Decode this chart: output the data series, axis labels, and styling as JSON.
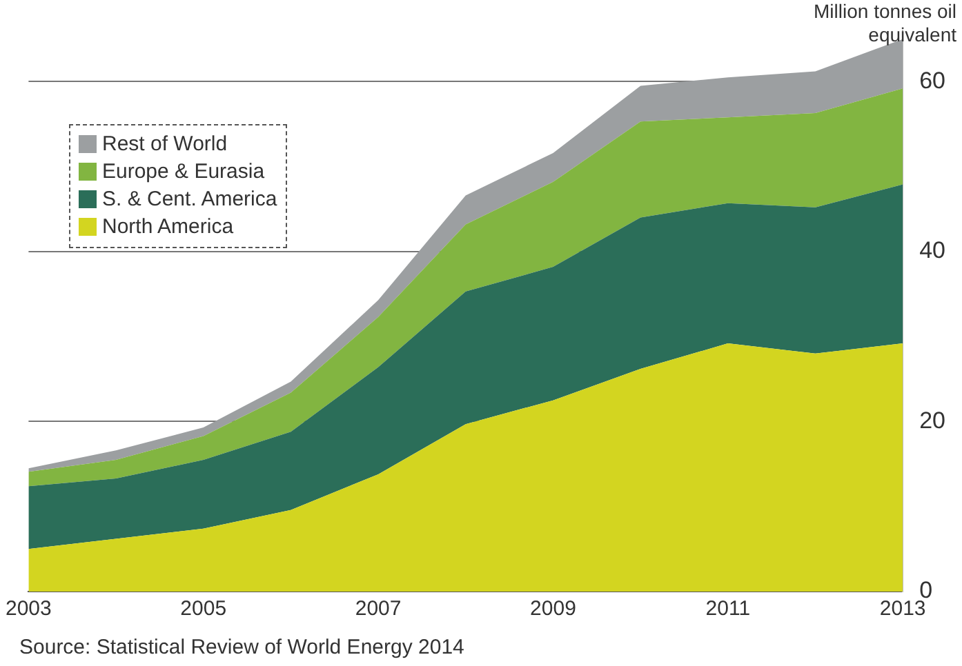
{
  "chart_data": {
    "type": "area",
    "stacked": true,
    "x": [
      2003,
      2004,
      2005,
      2006,
      2007,
      2008,
      2009,
      2010,
      2011,
      2012,
      2013
    ],
    "series": [
      {
        "name": "North America",
        "color": "#d3d520",
        "values": [
          5.0,
          6.2,
          7.4,
          9.6,
          13.8,
          19.7,
          22.5,
          26.2,
          29.2,
          28.0,
          29.2
        ]
      },
      {
        "name": "S. & Cent. America",
        "color": "#2b6e59",
        "values": [
          7.4,
          7.1,
          8.1,
          9.2,
          12.6,
          15.6,
          15.7,
          17.8,
          16.5,
          17.2,
          18.7
        ]
      },
      {
        "name": "Europe & Eurasia",
        "color": "#82b541",
        "values": [
          1.7,
          2.2,
          2.8,
          4.6,
          5.9,
          7.9,
          10.0,
          11.3,
          10.1,
          11.1,
          11.3
        ]
      },
      {
        "name": "Rest of World",
        "color": "#9c9fa1",
        "values": [
          0.4,
          1.1,
          1.0,
          1.3,
          2.0,
          3.4,
          3.4,
          4.2,
          4.7,
          4.9,
          5.8
        ]
      }
    ],
    "xlim": [
      2003,
      2013
    ],
    "xticks": [
      2003,
      2005,
      2007,
      2009,
      2011,
      2013
    ],
    "ylim": [
      0,
      66
    ],
    "yticks": [
      0,
      20,
      40,
      60
    ],
    "ylabel": "Million tonnes oil equivalent",
    "grid": "y",
    "legend": "top left",
    "annotations": [
      "Source: Statistical Review of World Energy 2014"
    ]
  }
}
